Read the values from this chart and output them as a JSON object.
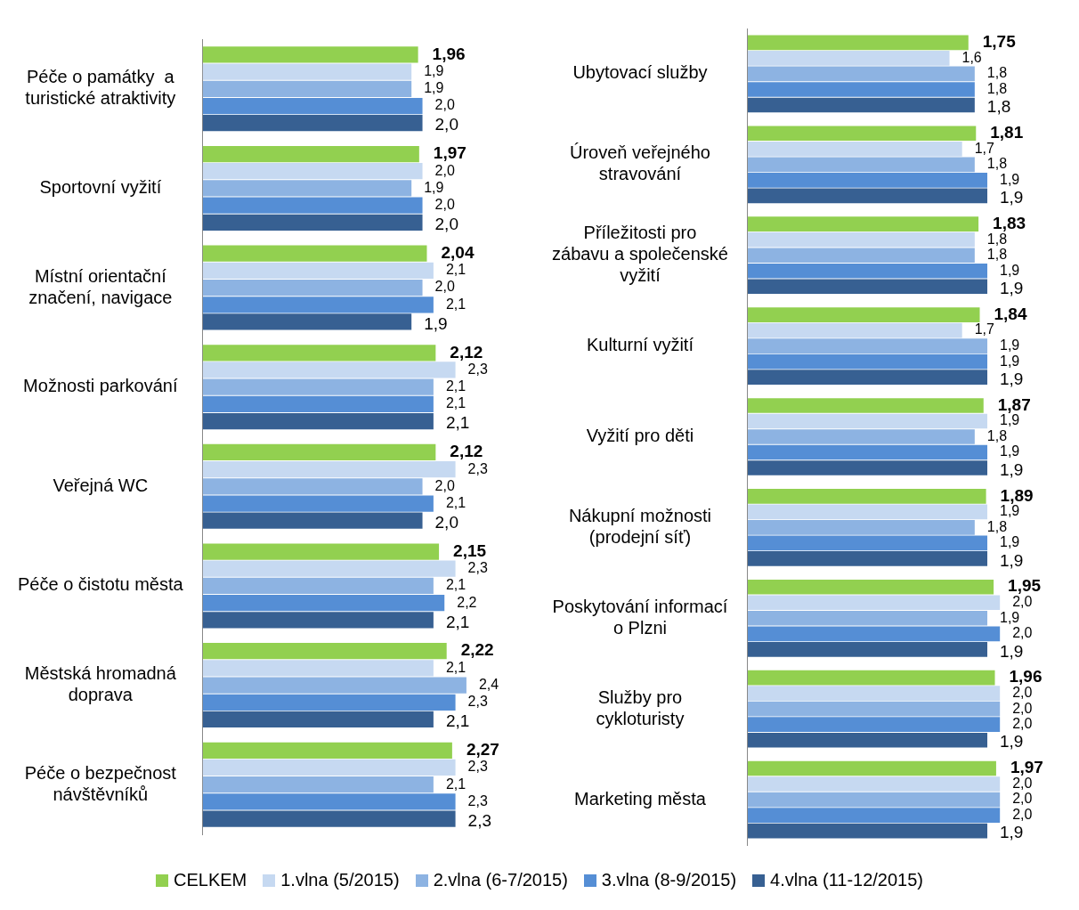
{
  "chart_data": [
    {
      "type": "bar",
      "orientation": "horizontal",
      "legend": "bottom",
      "grid": false,
      "tick_labels": "y",
      "categories": [
        "Péče o památky  a turistické atraktivity",
        "Sportovní vyžití",
        "Místní orientační značení, navigace",
        "Možnosti parkování",
        "Veřejná WC",
        "Péče o čistotu města",
        "Městská hromadná doprava",
        "Péče o bezpečnost návštěvníků"
      ],
      "series": [
        {
          "name": "CELKEM",
          "color": "#92d050",
          "values": [
            1.96,
            1.97,
            2.04,
            2.12,
            2.12,
            2.15,
            2.22,
            2.27
          ],
          "value_labels": [
            "1,96",
            "1,97",
            "2,04",
            "2,12",
            "2,12",
            "2,15",
            "2,22",
            "2,27"
          ]
        },
        {
          "name": "1.vlna (5/2015)",
          "color": "#c6d9f1",
          "values": [
            1.9,
            2.0,
            2.1,
            2.3,
            2.3,
            2.3,
            2.1,
            2.3
          ],
          "value_labels": [
            "1,9",
            "2,0",
            "2,1",
            "2,3",
            "2,3",
            "2,3",
            "2,1",
            "2,3"
          ]
        },
        {
          "name": "2.vlna (6-7/2015)",
          "color": "#8db3e2",
          "values": [
            1.9,
            1.9,
            2.0,
            2.1,
            2.0,
            2.1,
            2.4,
            2.1
          ],
          "value_labels": [
            "1,9",
            "1,9",
            "2,0",
            "2,1",
            "2,0",
            "2,1",
            "2,4",
            "2,1"
          ]
        },
        {
          "name": "3.vlna (8-9/2015)",
          "color": "#558ed5",
          "values": [
            2.0,
            2.0,
            2.1,
            2.1,
            2.1,
            2.2,
            2.3,
            2.3
          ],
          "value_labels": [
            "2,0",
            "2,0",
            "2,1",
            "2,1",
            "2,1",
            "2,2",
            "2,3",
            "2,3"
          ]
        },
        {
          "name": "4.vlna (11-12/2015)",
          "color": "#376092",
          "values": [
            2.0,
            2.0,
            1.9,
            2.1,
            2.0,
            2.1,
            2.1,
            2.3
          ],
          "value_labels": [
            "2,0",
            "2,0",
            "1,9",
            "2,1",
            "2,0",
            "2,1",
            "2,1",
            "2,3"
          ]
        }
      ]
    },
    {
      "type": "bar",
      "orientation": "horizontal",
      "grid": false,
      "tick_labels": "y",
      "categories": [
        "Ubytovací služby",
        "Úroveň veřejného stravování",
        "Příležitosti pro zábavu a společenské vyžití",
        "Kulturní vyžití",
        "Vyžití pro děti",
        "Nákupní možnosti (prodejní síť)",
        "Poskytování informací o Plzni",
        "Služby pro cykloturisty",
        "Marketing města"
      ],
      "series": [
        {
          "color": "#92d050",
          "values": [
            1.75,
            1.81,
            1.83,
            1.84,
            1.87,
            1.89,
            1.95,
            1.96,
            1.97
          ],
          "value_labels": [
            "1,75",
            "1,81",
            "1,83",
            "1,84",
            "1,87",
            "1,89",
            "1,95",
            "1,96",
            "1,97"
          ]
        },
        {
          "color": "#c6d9f1",
          "values": [
            1.6,
            1.7,
            1.8,
            1.7,
            1.9,
            1.9,
            2.0,
            2.0,
            2.0
          ],
          "value_labels": [
            "1,6",
            "1,7",
            "1,8",
            "1,7",
            "1,9",
            "1,9",
            "2,0",
            "2,0",
            "2,0"
          ]
        },
        {
          "color": "#8db3e2",
          "values": [
            1.8,
            1.8,
            1.8,
            1.9,
            1.8,
            1.8,
            1.9,
            2.0,
            2.0
          ],
          "value_labels": [
            "1,8",
            "1,8",
            "1,8",
            "1,9",
            "1,8",
            "1,8",
            "1,9",
            "2,0",
            "2,0"
          ]
        },
        {
          "color": "#558ed5",
          "values": [
            1.8,
            1.9,
            1.9,
            1.9,
            1.9,
            1.9,
            2.0,
            2.0,
            2.0
          ],
          "value_labels": [
            "1,8",
            "1,9",
            "1,9",
            "1,9",
            "1,9",
            "1,9",
            "2,0",
            "2,0",
            "2,0"
          ]
        },
        {
          "color": "#376092",
          "values": [
            1.8,
            1.9,
            1.9,
            1.9,
            1.9,
            1.9,
            1.9,
            1.9,
            1.9
          ],
          "value_labels": [
            "1,8",
            "1,9",
            "1,9",
            "1,9",
            "1,9",
            "1,9",
            "1,9",
            "1,9",
            "1,9"
          ]
        }
      ]
    }
  ]
}
